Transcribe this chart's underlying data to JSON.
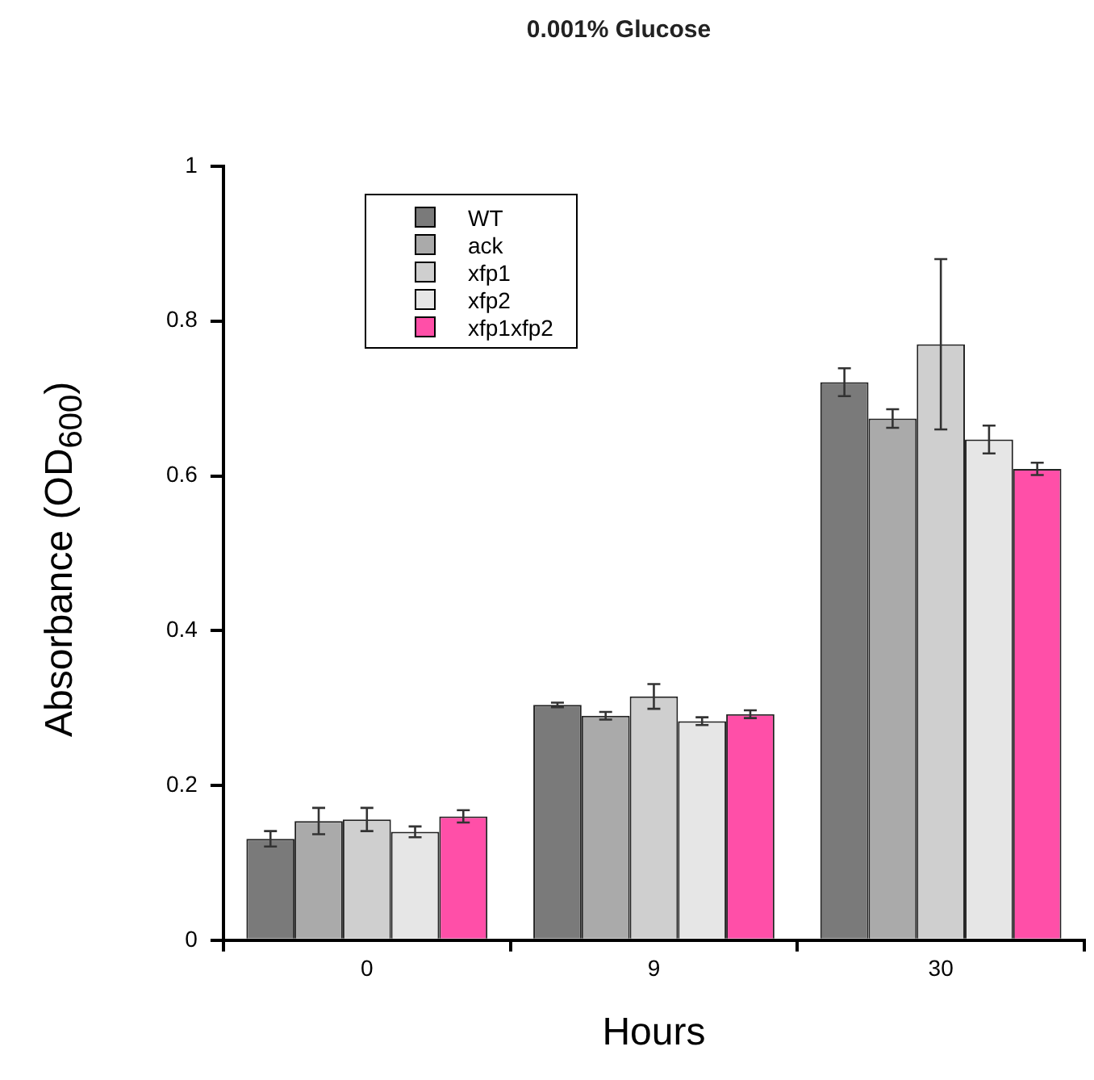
{
  "chart_data": {
    "type": "bar",
    "title": "0.001% Glucose",
    "xlabel": "Hours",
    "ylabel": "Absorbance (OD$_{600}$)",
    "categories": [
      "0",
      "9",
      "30"
    ],
    "series": [
      {
        "name": "WT",
        "color": "#7a7a7a",
        "values": [
          0.131,
          0.304,
          0.721
        ],
        "errors": [
          0.01,
          0.003,
          0.018
        ]
      },
      {
        "name": "ack",
        "color": "#aaaaaa",
        "values": [
          0.154,
          0.29,
          0.674
        ],
        "errors": [
          0.017,
          0.005,
          0.012
        ]
      },
      {
        "name": "xfp1",
        "color": "#cfcfcf",
        "values": [
          0.156,
          0.315,
          0.77
        ],
        "errors": [
          0.015,
          0.016,
          0.11
        ]
      },
      {
        "name": "xfp2",
        "color": "#e6e6e6",
        "values": [
          0.14,
          0.283,
          0.647
        ],
        "errors": [
          0.007,
          0.005,
          0.018
        ]
      },
      {
        "name": "xfp1xfp2",
        "color": "#ff4fa8",
        "values": [
          0.16,
          0.292,
          0.609
        ],
        "errors": [
          0.008,
          0.005,
          0.008
        ]
      }
    ],
    "ylim": [
      0,
      1
    ],
    "yticks": [
      0,
      0.2,
      0.4,
      0.6,
      0.8,
      1
    ],
    "grid": false,
    "legend": "top left"
  }
}
